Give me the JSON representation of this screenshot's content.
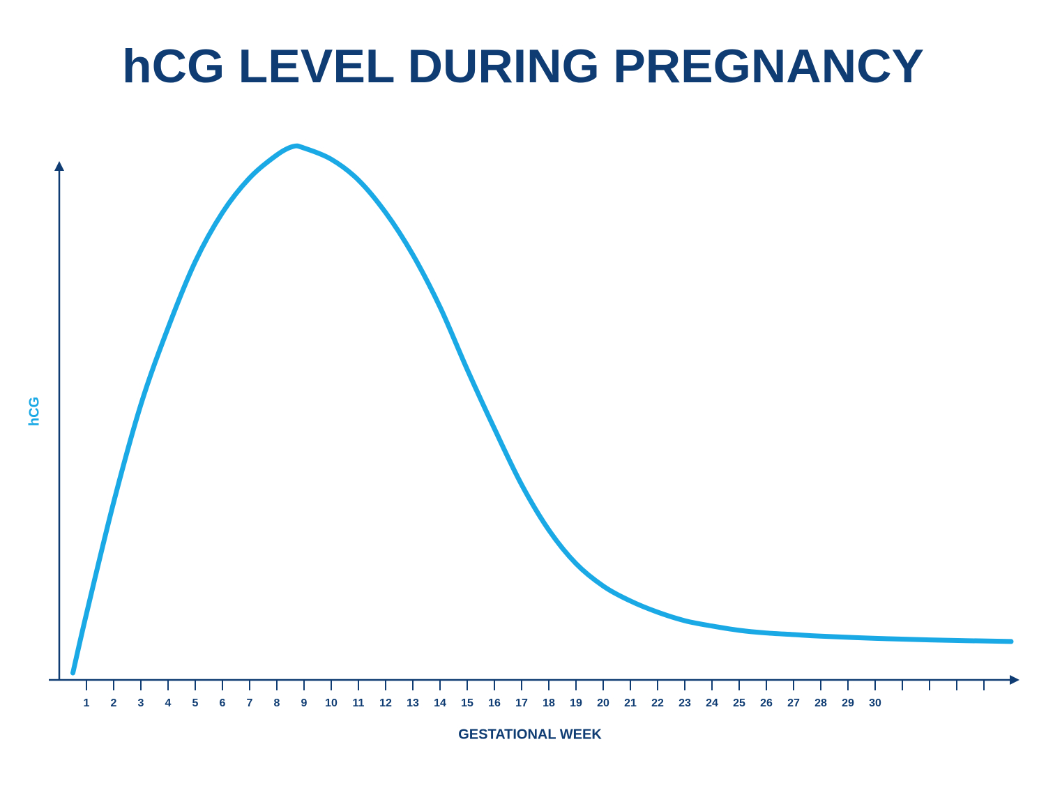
{
  "chart_data": {
    "type": "line",
    "title": "hCG LEVEL DURING PREGNANCY",
    "xlabel": "GESTATIONAL WEEK",
    "ylabel": "hCG",
    "x": [
      0.5,
      1,
      2,
      3,
      4,
      5,
      6,
      7,
      8,
      8.6,
      9,
      10,
      11,
      12,
      13,
      14,
      15,
      16,
      17,
      18,
      19,
      20,
      21,
      22,
      23,
      24,
      25,
      26,
      27,
      28,
      30,
      32,
      35
    ],
    "series": [
      {
        "name": "hCG",
        "color": "#1ba9e5",
        "values": [
          1.3,
          12.4,
          33.3,
          51.6,
          66.0,
          78.4,
          87.6,
          94.1,
          98.4,
          100,
          99.7,
          97.6,
          93.7,
          87.6,
          79.7,
          69.9,
          58.2,
          47.1,
          36.6,
          28.1,
          21.8,
          17.6,
          14.8,
          12.7,
          11.1,
          10.1,
          9.3,
          8.8,
          8.5,
          8.2,
          7.8,
          7.5,
          7.2
        ]
      }
    ],
    "xlim": [
      0,
      35
    ],
    "ylim": [
      0,
      100
    ],
    "xticks": [
      1,
      2,
      3,
      4,
      5,
      6,
      7,
      8,
      9,
      10,
      11,
      12,
      13,
      14,
      15,
      16,
      17,
      18,
      19,
      20,
      21,
      22,
      23,
      24,
      25,
      26,
      27,
      28,
      29,
      30,
      {
        "value": 31,
        "label": null
      },
      {
        "value": 32,
        "label": null
      },
      {
        "value": 33,
        "label": null
      },
      {
        "value": 34,
        "label": null
      }
    ],
    "axis_color": "#0f3d73",
    "title_color": "#0f3d73"
  }
}
